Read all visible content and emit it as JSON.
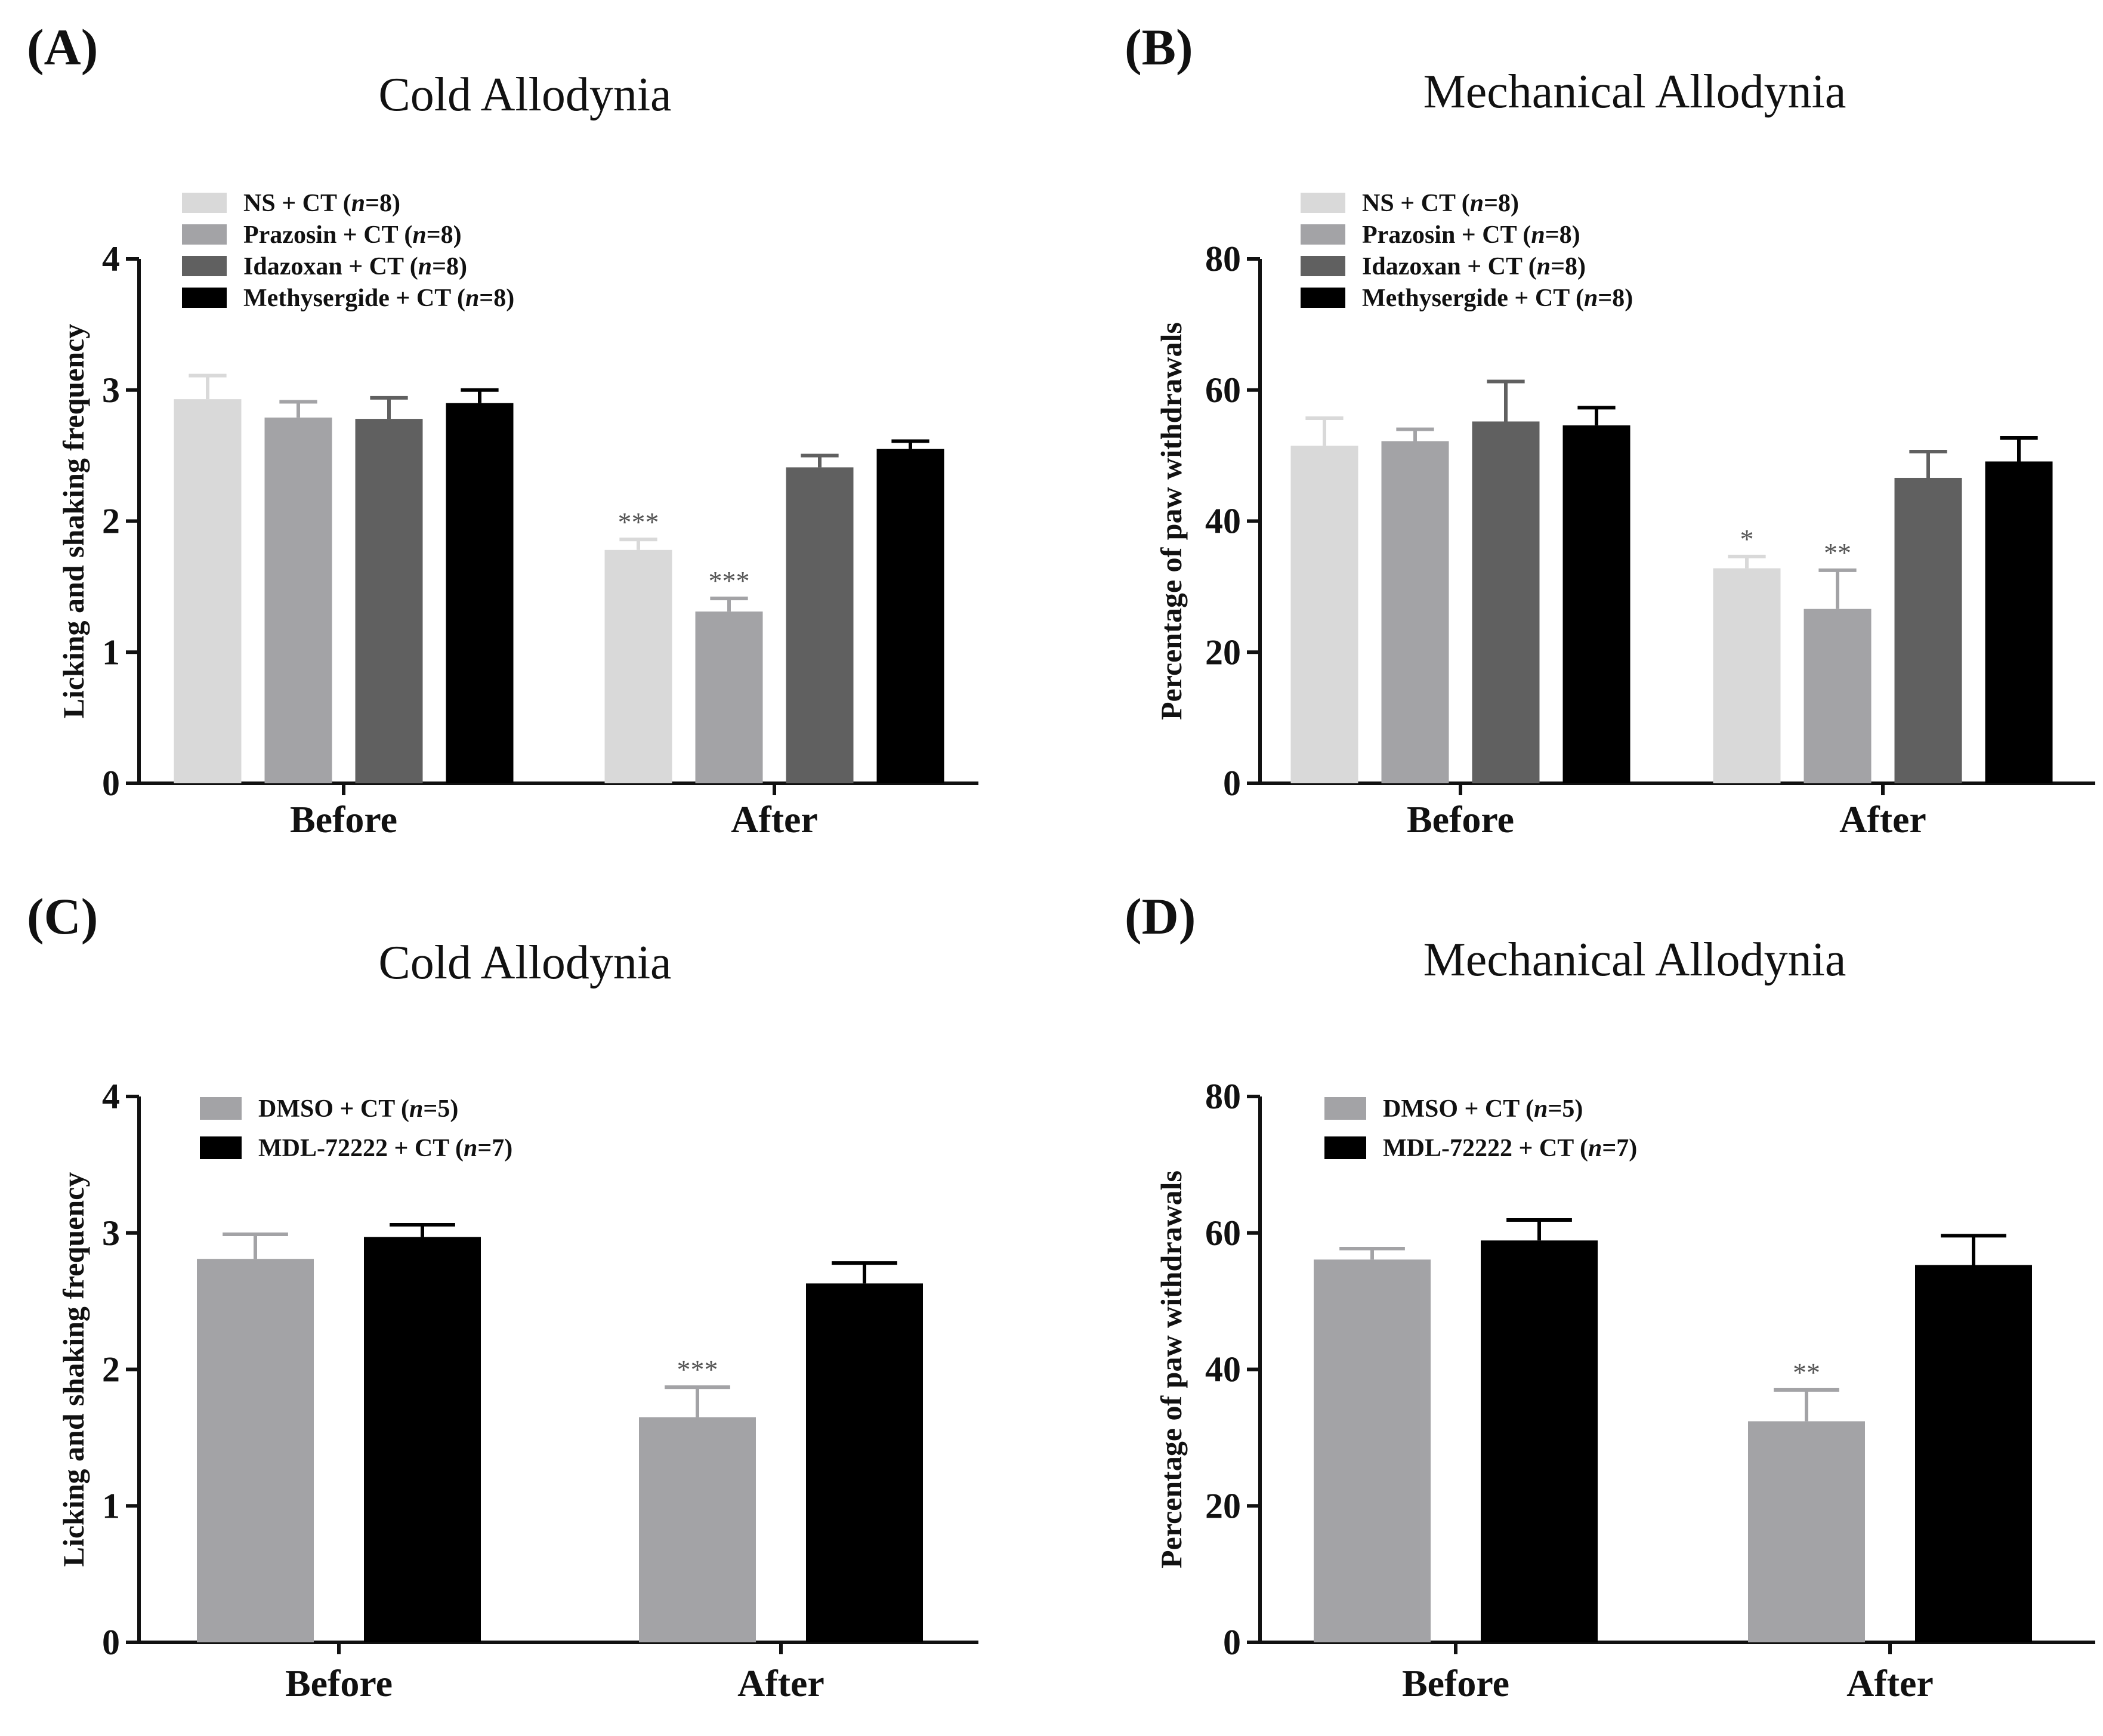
{
  "chart_data": [
    {
      "panel": "(A)",
      "type": "bar",
      "title": "Cold Allodynia",
      "ylabel": "Licking and shaking frequency",
      "xlabel": "",
      "ylim": [
        0,
        4
      ],
      "yticks": [
        0,
        1,
        2,
        3,
        4
      ],
      "categories": [
        "Before",
        "After"
      ],
      "series": [
        {
          "name": "NS + CT (n=8)",
          "legend_prefix": "NS + CT (",
          "n_value": "8",
          "color": "#d9d9d9",
          "values": [
            2.93,
            1.78
          ],
          "errors": [
            0.18,
            0.08
          ],
          "significance": [
            "",
            "***"
          ]
        },
        {
          "name": "Prazosin + CT (n=8)",
          "legend_prefix": "Prazosin + CT (",
          "n_value": "8",
          "color": "#a3a3a6",
          "values": [
            2.79,
            1.31
          ],
          "errors": [
            0.12,
            0.1
          ],
          "significance": [
            "",
            "***"
          ]
        },
        {
          "name": "Idazoxan + CT (n=8)",
          "legend_prefix": "Idazoxan + CT (",
          "n_value": "8",
          "color": "#606060",
          "values": [
            2.78,
            2.41
          ],
          "errors": [
            0.16,
            0.09
          ],
          "significance": [
            "",
            ""
          ]
        },
        {
          "name": "Methysergide + CT (n=8)",
          "legend_prefix": "Methysergide + CT (",
          "n_value": "8",
          "color": "#000000",
          "values": [
            2.9,
            2.55
          ],
          "errors": [
            0.1,
            0.06
          ],
          "significance": [
            "",
            ""
          ]
        }
      ]
    },
    {
      "panel": "(B)",
      "type": "bar",
      "title": "Mechanical Allodynia",
      "ylabel": "Percentage of paw withdrawals",
      "xlabel": "",
      "ylim": [
        0,
        80
      ],
      "yticks": [
        0,
        20,
        40,
        60,
        80
      ],
      "categories": [
        "Before",
        "After"
      ],
      "series": [
        {
          "name": "NS + CT (n=8)",
          "legend_prefix": "NS + CT (",
          "n_value": "8",
          "color": "#d9d9d9",
          "values": [
            51.5,
            32.8
          ],
          "errors": [
            4.2,
            1.8
          ],
          "significance": [
            "",
            "*"
          ]
        },
        {
          "name": "Prazosin + CT (n=8)",
          "legend_prefix": "Prazosin + CT (",
          "n_value": "8",
          "color": "#a3a3a6",
          "values": [
            52.2,
            26.6
          ],
          "errors": [
            1.8,
            5.9
          ],
          "significance": [
            "",
            "**"
          ]
        },
        {
          "name": "Idazoxan + CT (n=8)",
          "legend_prefix": "Idazoxan + CT (",
          "n_value": "8",
          "color": "#606060",
          "values": [
            55.2,
            46.6
          ],
          "errors": [
            6.1,
            4.0
          ],
          "significance": [
            "",
            ""
          ]
        },
        {
          "name": "Methysergide + CT (n=8)",
          "legend_prefix": "Methysergide + CT (",
          "n_value": "8",
          "color": "#000000",
          "values": [
            54.6,
            49.1
          ],
          "errors": [
            2.7,
            3.6
          ],
          "significance": [
            "",
            ""
          ]
        }
      ]
    },
    {
      "panel": "(C)",
      "type": "bar",
      "title": "Cold Allodynia",
      "ylabel": "Licking and shaking frequency",
      "xlabel": "",
      "ylim": [
        0,
        4
      ],
      "yticks": [
        0,
        1,
        2,
        3,
        4
      ],
      "categories": [
        "Before",
        "After"
      ],
      "series": [
        {
          "name": "DMSO + CT (n=5)",
          "legend_prefix": "DMSO + CT (",
          "n_value": "5",
          "color": "#a3a3a6",
          "values": [
            2.81,
            1.65
          ],
          "errors": [
            0.18,
            0.22
          ],
          "significance": [
            "",
            "***"
          ]
        },
        {
          "name": "MDL-72222 + CT (n=7)",
          "legend_prefix": "MDL-72222 + CT (",
          "n_value": "7",
          "color": "#000000",
          "values": [
            2.97,
            2.63
          ],
          "errors": [
            0.09,
            0.15
          ],
          "significance": [
            "",
            ""
          ]
        }
      ]
    },
    {
      "panel": "(D)",
      "type": "bar",
      "title": "Mechanical Allodynia",
      "ylabel": "Percentage of paw withdrawals",
      "xlabel": "",
      "ylim": [
        0,
        80
      ],
      "yticks": [
        0,
        20,
        40,
        60,
        80
      ],
      "categories": [
        "Before",
        "After"
      ],
      "series": [
        {
          "name": "DMSO + CT (n=5)",
          "legend_prefix": "DMSO + CT (",
          "n_value": "5",
          "color": "#a3a3a6",
          "values": [
            56.1,
            32.4
          ],
          "errors": [
            1.6,
            4.6
          ],
          "significance": [
            "",
            "**"
          ]
        },
        {
          "name": "MDL-72222 + CT (n=7)",
          "legend_prefix": "MDL-72222 + CT (",
          "n_value": "7",
          "color": "#000000",
          "values": [
            58.9,
            55.3
          ],
          "errors": [
            3.0,
            4.3
          ],
          "significance": [
            "",
            ""
          ]
        }
      ]
    }
  ]
}
